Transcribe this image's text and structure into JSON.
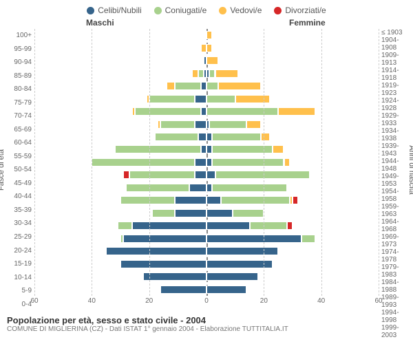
{
  "type": "population-pyramid",
  "legend": [
    {
      "label": "Celibi/Nubili",
      "color": "#36648b"
    },
    {
      "label": "Coniugati/e",
      "color": "#a8d18d"
    },
    {
      "label": "Vedovi/e",
      "color": "#ffc04c"
    },
    {
      "label": "Divorziati/e",
      "color": "#d62728"
    }
  ],
  "header_male": "Maschi",
  "header_female": "Femmine",
  "axis_left_title": "Fasce di età",
  "axis_right_title": "Anni di nascita",
  "x_ticks": [
    60,
    40,
    20,
    0,
    20,
    40,
    60
  ],
  "x_max": 60,
  "age_labels": [
    "100+",
    "95-99",
    "90-94",
    "85-89",
    "80-84",
    "75-79",
    "70-74",
    "65-69",
    "60-64",
    "55-59",
    "50-54",
    "45-49",
    "40-44",
    "35-39",
    "30-34",
    "25-29",
    "20-24",
    "15-19",
    "10-14",
    "5-9",
    "0-4"
  ],
  "birth_labels": [
    "≤ 1903",
    "1904-1908",
    "1909-1913",
    "1914-1918",
    "1919-1923",
    "1924-1928",
    "1929-1933",
    "1934-1938",
    "1939-1943",
    "1944-1948",
    "1949-1953",
    "1954-1958",
    "1959-1963",
    "1964-1968",
    "1969-1973",
    "1974-1978",
    "1979-1983",
    "1984-1988",
    "1989-1993",
    "1994-1998",
    "1999-2003"
  ],
  "rows": [
    {
      "m": [
        0,
        0,
        0,
        0
      ],
      "f": [
        0,
        0,
        2,
        0
      ]
    },
    {
      "m": [
        0,
        0,
        2,
        0
      ],
      "f": [
        0,
        0,
        2,
        0
      ]
    },
    {
      "m": [
        1,
        0,
        0,
        0
      ],
      "f": [
        0,
        0,
        4,
        0
      ]
    },
    {
      "m": [
        1,
        2,
        2,
        0
      ],
      "f": [
        1,
        2,
        8,
        0
      ]
    },
    {
      "m": [
        2,
        9,
        3,
        0
      ],
      "f": [
        0,
        4,
        15,
        0
      ]
    },
    {
      "m": [
        4,
        16,
        1,
        0
      ],
      "f": [
        0,
        10,
        12,
        0
      ]
    },
    {
      "m": [
        2,
        23,
        1,
        0
      ],
      "f": [
        0,
        25,
        13,
        0
      ]
    },
    {
      "m": [
        4,
        12,
        1,
        0
      ],
      "f": [
        1,
        13,
        5,
        0
      ]
    },
    {
      "m": [
        3,
        15,
        0,
        0
      ],
      "f": [
        2,
        17,
        3,
        0
      ]
    },
    {
      "m": [
        2,
        30,
        0,
        0
      ],
      "f": [
        2,
        21,
        4,
        0
      ]
    },
    {
      "m": [
        4,
        36,
        0,
        0
      ],
      "f": [
        2,
        25,
        2,
        0
      ]
    },
    {
      "m": [
        4,
        23,
        0,
        2
      ],
      "f": [
        3,
        33,
        0,
        0
      ]
    },
    {
      "m": [
        6,
        22,
        0,
        0
      ],
      "f": [
        2,
        26,
        0,
        0
      ]
    },
    {
      "m": [
        11,
        19,
        0,
        0
      ],
      "f": [
        5,
        24,
        1,
        2
      ]
    },
    {
      "m": [
        11,
        8,
        0,
        0
      ],
      "f": [
        9,
        11,
        0,
        0
      ]
    },
    {
      "m": [
        26,
        5,
        0,
        0
      ],
      "f": [
        15,
        13,
        0,
        2
      ]
    },
    {
      "m": [
        29,
        1,
        0,
        0
      ],
      "f": [
        33,
        5,
        0,
        0
      ]
    },
    {
      "m": [
        35,
        0,
        0,
        0
      ],
      "f": [
        25,
        0,
        0,
        0
      ]
    },
    {
      "m": [
        30,
        0,
        0,
        0
      ],
      "f": [
        23,
        0,
        0,
        0
      ]
    },
    {
      "m": [
        22,
        0,
        0,
        0
      ],
      "f": [
        18,
        0,
        0,
        0
      ]
    },
    {
      "m": [
        16,
        0,
        0,
        0
      ],
      "f": [
        14,
        0,
        0,
        0
      ]
    }
  ],
  "colors": {
    "bg": "#ffffff",
    "grid": "#cccccc",
    "center": "#888888",
    "text": "#555555"
  },
  "footer_title": "Popolazione per età, sesso e stato civile - 2004",
  "footer_sub": "COMUNE DI MIGLIERINA (CZ) - Dati ISTAT 1° gennaio 2004 - Elaborazione TUTTITALIA.IT"
}
